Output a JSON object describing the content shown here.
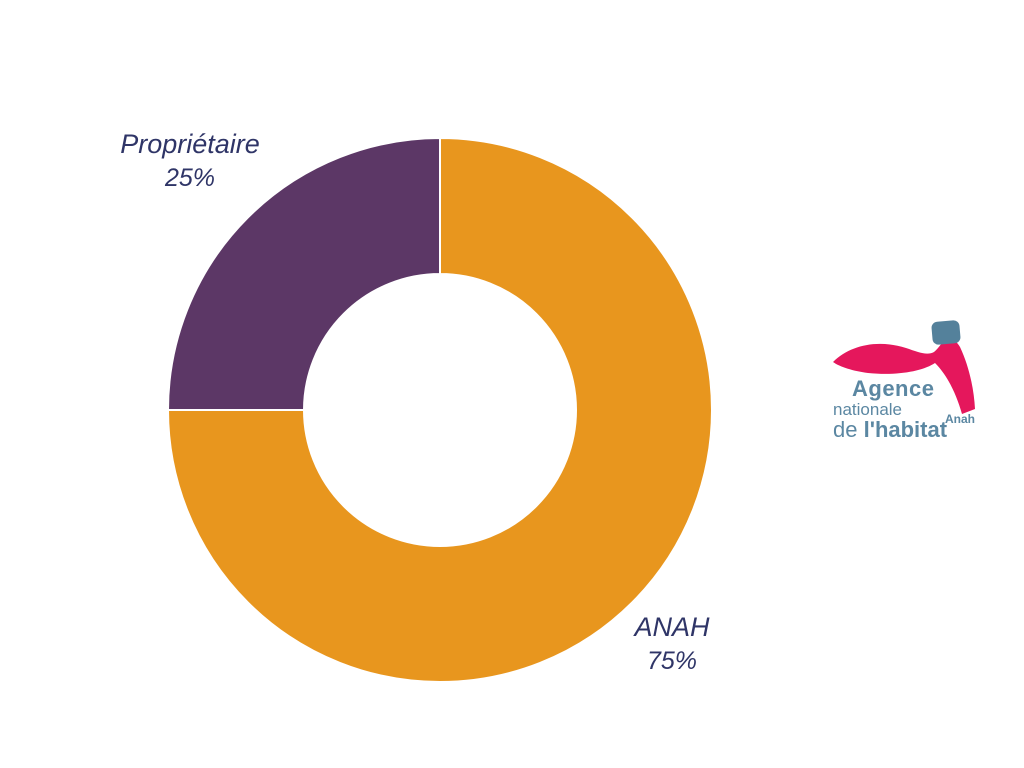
{
  "chart_data": {
    "type": "pie",
    "subtype": "donut",
    "labels": [
      "ANAH",
      "Propriétaire"
    ],
    "values": [
      75,
      25
    ],
    "percent_labels": [
      "75%",
      "25%"
    ],
    "colors": [
      "#E8961E",
      "#5C3766"
    ],
    "hole_ratio": 0.5,
    "start_angle": "12-o-clock",
    "direction": "clockwise",
    "title": "",
    "label_color": "#2F3567",
    "separator_color": "#FFFFFF"
  },
  "logo": {
    "line1": "Agence",
    "line2": "nationale",
    "line3_light": "de ",
    "line3_bold": "l'habitat",
    "brand_small": "Anah",
    "text_color": "#5B87A2",
    "swoosh_color": "#E5175C",
    "square_color": "#54819B"
  }
}
